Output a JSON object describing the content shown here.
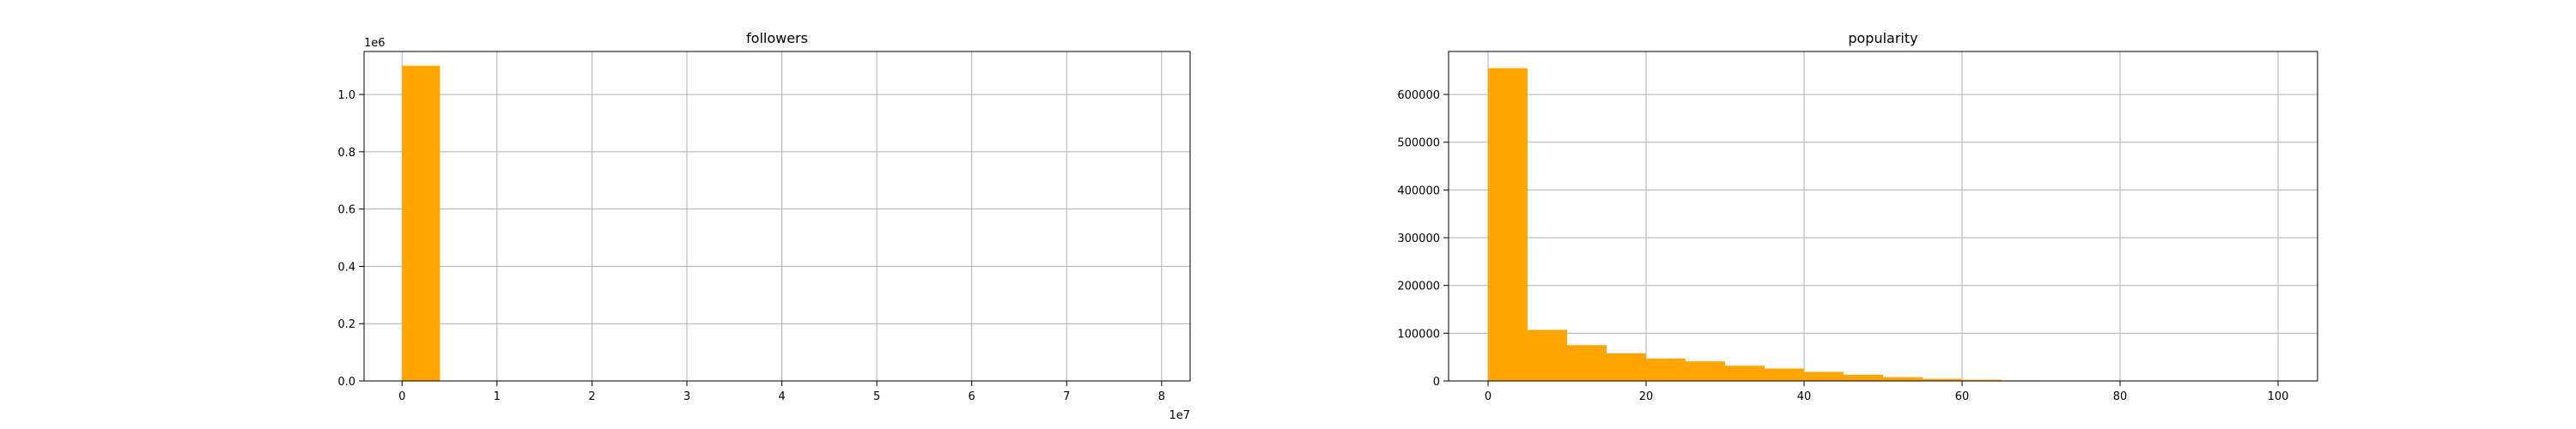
{
  "chart_data": [
    {
      "type": "bar",
      "title": "followers",
      "xlabel": "",
      "ylabel": "",
      "x_offset_label": "1e7",
      "y_offset_label": "1e6",
      "xlim": [
        -0.4,
        8.3
      ],
      "ylim": [
        0,
        1.15
      ],
      "xticks": [
        0,
        1,
        2,
        3,
        4,
        5,
        6,
        7,
        8
      ],
      "xtick_labels": [
        "0",
        "1",
        "2",
        "3",
        "4",
        "5",
        "6",
        "7",
        "8"
      ],
      "yticks": [
        0.0,
        0.2,
        0.4,
        0.6,
        0.8,
        1.0
      ],
      "ytick_labels": [
        "0.0",
        "0.2",
        "0.4",
        "0.6",
        "0.8",
        "1.0"
      ],
      "grid": true,
      "color": "#FFA500",
      "bins": [
        {
          "x0": 0,
          "x1": 0.4,
          "value": 1.1
        }
      ]
    },
    {
      "type": "bar",
      "title": "popularity",
      "xlabel": "",
      "ylabel": "",
      "xlim": [
        -5,
        105
      ],
      "ylim": [
        0,
        690000
      ],
      "xticks": [
        0,
        20,
        40,
        60,
        80,
        100
      ],
      "xtick_labels": [
        "0",
        "20",
        "40",
        "60",
        "80",
        "100"
      ],
      "yticks": [
        0,
        100000,
        200000,
        300000,
        400000,
        500000,
        600000
      ],
      "ytick_labels": [
        "0",
        "100000",
        "200000",
        "300000",
        "400000",
        "500000",
        "600000"
      ],
      "grid": true,
      "color": "#FFA500",
      "bins": [
        {
          "x0": 0,
          "x1": 5,
          "value": 655000
        },
        {
          "x0": 5,
          "x1": 10,
          "value": 107000
        },
        {
          "x0": 10,
          "x1": 15,
          "value": 75000
        },
        {
          "x0": 15,
          "x1": 20,
          "value": 58000
        },
        {
          "x0": 20,
          "x1": 25,
          "value": 47000
        },
        {
          "x0": 25,
          "x1": 30,
          "value": 41000
        },
        {
          "x0": 30,
          "x1": 35,
          "value": 32000
        },
        {
          "x0": 35,
          "x1": 40,
          "value": 26000
        },
        {
          "x0": 40,
          "x1": 45,
          "value": 19000
        },
        {
          "x0": 45,
          "x1": 50,
          "value": 13000
        },
        {
          "x0": 50,
          "x1": 55,
          "value": 8000
        },
        {
          "x0": 55,
          "x1": 60,
          "value": 4500
        },
        {
          "x0": 60,
          "x1": 65,
          "value": 2500
        },
        {
          "x0": 65,
          "x1": 70,
          "value": 1200
        },
        {
          "x0": 70,
          "x1": 75,
          "value": 500
        },
        {
          "x0": 75,
          "x1": 80,
          "value": 150
        },
        {
          "x0": 80,
          "x1": 85,
          "value": 50
        },
        {
          "x0": 85,
          "x1": 90,
          "value": 15
        },
        {
          "x0": 90,
          "x1": 95,
          "value": 5
        },
        {
          "x0": 95,
          "x1": 100,
          "value": 2
        }
      ]
    }
  ]
}
